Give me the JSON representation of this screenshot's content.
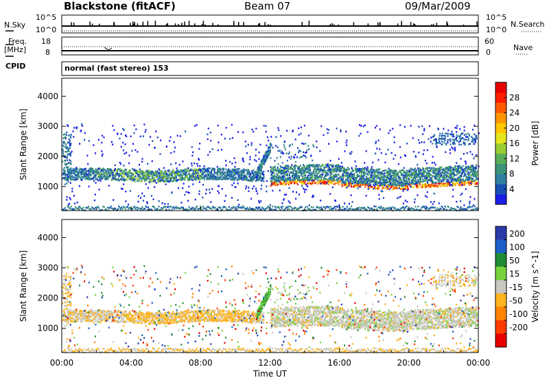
{
  "header": {
    "site": "Blackstone (fitACF)",
    "beam": "Beam 07",
    "date": "09/Mar/2009"
  },
  "summary": {
    "nsky_label": "N.Sky",
    "nsky_ticks": [
      "10^5",
      "10^0"
    ],
    "nsearch_label": "N.Search",
    "nsearch_ticks": [
      "10^5",
      "10^0"
    ],
    "freq_label": "Freq.",
    "freq_unit": "[MHz]",
    "freq_ticks": [
      "18",
      "8"
    ],
    "nave_label": "Nave",
    "nave_ticks": [
      "60",
      "0"
    ],
    "cpid_label": "CPID",
    "cpid_text": "normal (fast stereo) 153"
  },
  "chart_data": [
    {
      "type": "heatmap",
      "parameter": "Power",
      "ylabel": "Slant Range [km]",
      "xlabel": "Time UT",
      "x_ticks": [
        "00:00",
        "04:00",
        "08:00",
        "12:00",
        "16:00",
        "20:00",
        "00:00"
      ],
      "y_ticks": [
        1000,
        2000,
        3000,
        4000
      ],
      "ylim": [
        200,
        4600
      ],
      "xlim_hours": [
        0,
        24
      ],
      "colorbar": {
        "label": "Power [dB]",
        "range": [
          0,
          32
        ],
        "ticks": [
          4,
          8,
          12,
          16,
          20,
          24,
          28
        ],
        "colors": [
          "#1a1ee6",
          "#1a50b4",
          "#2e7fa0",
          "#3c9478",
          "#5aae5a",
          "#9acd32",
          "#e6e61e",
          "#ffc800",
          "#ff9600",
          "#ff5a00",
          "#ff1e00",
          "#e60000"
        ]
      }
    },
    {
      "type": "heatmap",
      "parameter": "Velocity",
      "ylabel": "Slant Range [km]",
      "xlabel": "Time UT",
      "x_ticks": [
        "00:00",
        "04:00",
        "08:00",
        "12:00",
        "16:00",
        "20:00",
        "00:00"
      ],
      "y_ticks": [
        1000,
        2000,
        3000,
        4000
      ],
      "ylim": [
        200,
        4600
      ],
      "xlim_hours": [
        0,
        24
      ],
      "colorbar": {
        "label": "Velocity [m s^-1]",
        "ticks": [
          "200",
          "100",
          "50",
          "15",
          "-15",
          "-50",
          "-100",
          "-200"
        ],
        "colors": [
          "#2a3aa8",
          "#1a60c8",
          "#1e8c32",
          "#78d23c",
          "#c8c8c0",
          "#ffb41e",
          "#ff8200",
          "#ff3c00",
          "#e60000"
        ]
      }
    }
  ],
  "x_axis_title": "Time UT"
}
